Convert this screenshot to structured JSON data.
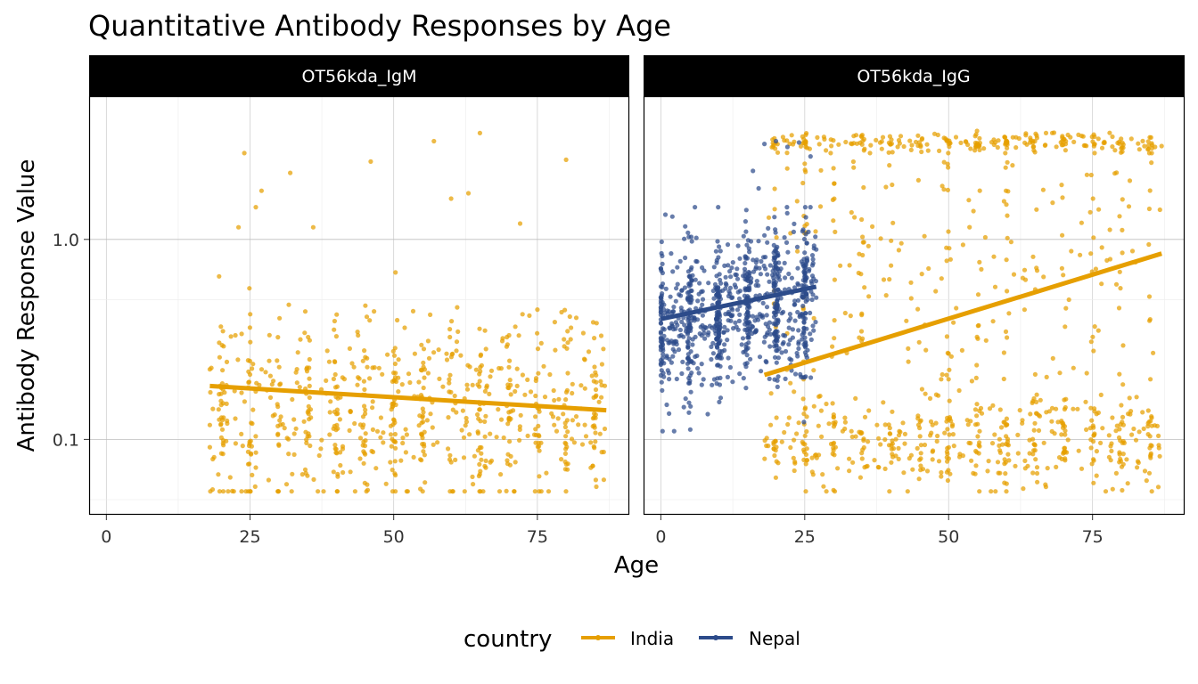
{
  "chart_data": {
    "type": "scatter",
    "title": "Quantitative Antibody Responses by Age",
    "xlabel": "Age",
    "ylabel": "Antibody Response Value",
    "x_scale": "linear",
    "y_scale": "log10",
    "xlim": [
      -3,
      91
    ],
    "ylim": [
      0.042,
      5.2
    ],
    "x_ticks": [
      0,
      25,
      50,
      75
    ],
    "x_tick_labels": [
      "0",
      "25",
      "50",
      "75"
    ],
    "y_ticks": [
      0.1,
      1.0
    ],
    "y_tick_labels": [
      "0.1",
      "1.0"
    ],
    "grid": true,
    "legend": {
      "title": "country",
      "position": "bottom",
      "entries": [
        {
          "label": "India",
          "color": "#E69F00"
        },
        {
          "label": "Nepal",
          "color": "#2C4B8A"
        }
      ]
    },
    "panels": [
      {
        "strip_label": "OT56kda_IgM",
        "series": [
          {
            "name": "India",
            "color": "#E69F00",
            "n_points": 720,
            "x_range": [
              18,
              87
            ],
            "cloud": {
              "center": 0.135,
              "spread": 0.24,
              "min": 0.055,
              "max": 0.97
            },
            "outliers": [
              [
                24,
                2.7
              ],
              [
                46,
                2.45
              ],
              [
                57,
                3.1
              ],
              [
                65,
                3.4
              ],
              [
                80,
                2.5
              ],
              [
                32,
                2.15
              ],
              [
                27,
                1.75
              ],
              [
                60,
                1.6
              ],
              [
                63,
                1.7
              ],
              [
                26,
                1.45
              ],
              [
                23,
                1.15
              ],
              [
                36,
                1.15
              ],
              [
                72,
                1.2
              ]
            ],
            "trend": {
              "x": [
                18,
                87
              ],
              "y": [
                0.185,
                0.14
              ]
            }
          }
        ]
      },
      {
        "strip_label": "OT56kda_IgG",
        "series": [
          {
            "name": "India",
            "color": "#E69F00",
            "n_points": 950,
            "x_range": [
              18,
              87
            ],
            "clusters": {
              "low": {
                "center": 0.1,
                "min": 0.055,
                "max": 0.2
              },
              "high": {
                "center": 3.05,
                "min": 2.7,
                "max": 3.6
              },
              "mid": {
                "min": 0.2,
                "max": 2.5
              }
            },
            "trend": {
              "x": [
                18,
                87
              ],
              "y": [
                0.21,
                0.85
              ]
            }
          },
          {
            "name": "Nepal",
            "color": "#2C4B8A",
            "n_points": 900,
            "x_range": [
              0,
              27
            ],
            "cloud": {
              "center": 0.43,
              "min": 0.11,
              "max": 1.45
            },
            "outliers": [
              [
                2,
                1.3
              ],
              [
                18,
                3.0
              ],
              [
                20,
                3.1
              ],
              [
                22,
                2.9
              ],
              [
                24,
                3.05
              ],
              [
                26,
                2.6
              ],
              [
                16,
                2.2
              ],
              [
                17,
                1.8
              ]
            ],
            "trend": {
              "x": [
                0,
                27
              ],
              "y": [
                0.4,
                0.58
              ]
            }
          }
        ]
      }
    ]
  }
}
